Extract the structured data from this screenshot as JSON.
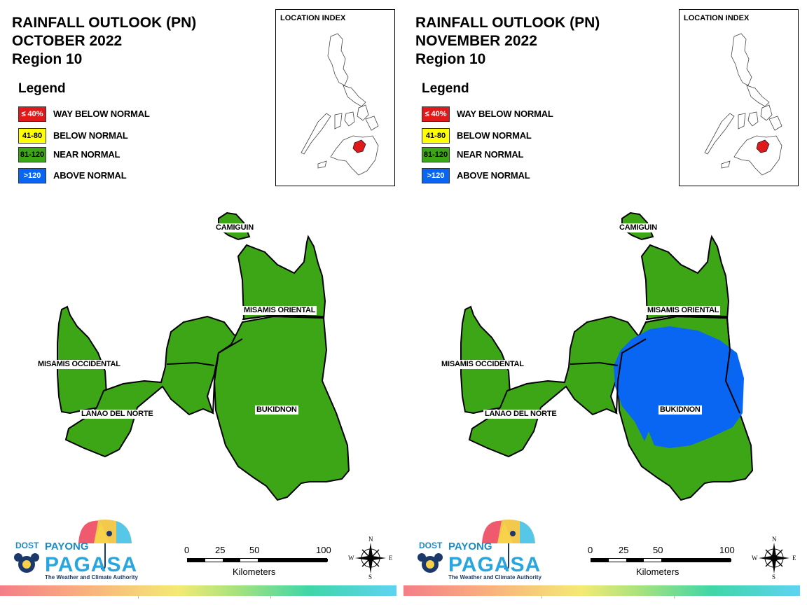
{
  "colors": {
    "way_below": "#e01a1a",
    "below": "#ffff00",
    "near": "#3da617",
    "above": "#0966f2",
    "inset_highlight": "#e01a1a"
  },
  "legend": {
    "title": "Legend",
    "items": [
      {
        "code": "≤ 40%",
        "label": "WAY BELOW NORMAL",
        "color": "#e01a1a",
        "text_color": "#ffffff"
      },
      {
        "code": "41-80",
        "label": "BELOW NORMAL",
        "color": "#ffff00",
        "text_color": "#000000"
      },
      {
        "code": "81-120",
        "label": "NEAR NORMAL",
        "color": "#3da617",
        "text_color": "#000000"
      },
      {
        "code": ">120",
        "label": "ABOVE NORMAL",
        "color": "#0966f2",
        "text_color": "#ffffff"
      }
    ]
  },
  "panels": [
    {
      "title_line1": "RAINFALL OUTLOOK (PN)",
      "title_line2": "OCTOBER 2022",
      "title_line3": "Region 10",
      "inset_title": "LOCATION INDEX",
      "provinces": {
        "camiguin": "CAMIGUIN",
        "misamis_oriental": "MISAMIS ORIENTAL",
        "misamis_occidental": "MISAMIS OCCIDENTAL",
        "lanao_del_norte": "LANAO DEL NORTE",
        "bukidnon": "BUKIDNON"
      },
      "above_normal_area": false
    },
    {
      "title_line1": "RAINFALL OUTLOOK (PN)",
      "title_line2": "NOVEMBER 2022",
      "title_line3": "Region 10",
      "inset_title": "LOCATION INDEX",
      "provinces": {
        "camiguin": "CAMIGUIN",
        "misamis_oriental": "MISAMIS ORIENTAL",
        "misamis_occidental": "MISAMIS OCCIDENTAL",
        "lanao_del_norte": "LANAO DEL NORTE",
        "bukidnon": "BUKIDNON"
      },
      "above_normal_area": true
    }
  ],
  "scale": {
    "ticks": [
      "0",
      "25",
      "50",
      "100"
    ],
    "unit": "Kilometers"
  },
  "compass": {
    "n": "N",
    "s": "S",
    "e": "E",
    "w": "W"
  },
  "logo": {
    "dost": "DOST",
    "payong": "PAYONG",
    "pagasa": "PAGASA",
    "tagline": "The Weather and Climate Authority"
  }
}
